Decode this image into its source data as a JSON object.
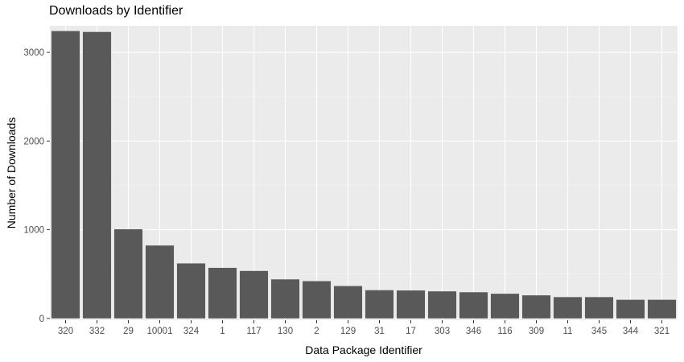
{
  "chart_data": {
    "type": "bar",
    "title": "Downloads by Identifier",
    "xlabel": "Data Package Identifier",
    "ylabel": "Number of Downloads",
    "categories": [
      "320",
      "332",
      "29",
      "10001",
      "324",
      "1",
      "117",
      "130",
      "2",
      "129",
      "31",
      "17",
      "303",
      "346",
      "116",
      "309",
      "11",
      "345",
      "344",
      "321"
    ],
    "values": [
      3240,
      3230,
      1005,
      822,
      620,
      570,
      535,
      440,
      420,
      365,
      318,
      315,
      305,
      295,
      278,
      260,
      240,
      240,
      210,
      210
    ],
    "ylim": [
      -20,
      3300
    ],
    "yticks": [
      0,
      1000,
      2000,
      3000
    ],
    "grid": true,
    "colors": {
      "bar": "#595959",
      "panel": "#ebebeb",
      "grid_major": "#ffffff",
      "grid_minor": "#f4f4f4"
    }
  }
}
